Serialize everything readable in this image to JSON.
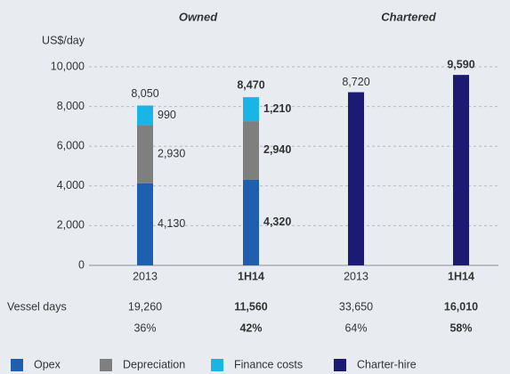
{
  "chart_data": {
    "type": "stacked_bar",
    "unit_label": "US$/day",
    "groups": [
      "Owned",
      "Chartered"
    ],
    "categories": [
      "2013",
      "1H14",
      "2013",
      "1H14"
    ],
    "series": [
      {
        "name": "Opex",
        "color": "#1f5fb0",
        "values": [
          4130,
          4320,
          null,
          null
        ],
        "value_labels": [
          "4,130",
          "4,320",
          null,
          null
        ]
      },
      {
        "name": "Depreciation",
        "color": "#7f7f7f",
        "values": [
          2930,
          2940,
          null,
          null
        ],
        "value_labels": [
          "2,930",
          "2,940",
          null,
          null
        ]
      },
      {
        "name": "Finance costs",
        "color": "#19b5e6",
        "values": [
          990,
          1210,
          null,
          null
        ],
        "value_labels": [
          "990",
          "1,210",
          null,
          null
        ]
      },
      {
        "name": "Charter-hire",
        "color": "#1c1a72",
        "values": [
          null,
          null,
          8720,
          9590
        ],
        "value_labels": [
          null,
          null,
          "8,720",
          "9,590"
        ]
      }
    ],
    "totals": {
      "values": [
        8050,
        8470,
        null,
        null
      ],
      "value_labels": [
        "8,050",
        "8,470",
        null,
        null
      ]
    },
    "ylim": [
      0,
      10000
    ],
    "yticks": [
      0,
      {
        "value": 2000,
        "label": "2,000"
      },
      {
        "value": 4000,
        "label": "4,000"
      },
      {
        "value": 6000,
        "label": "6,000"
      },
      {
        "value": 8000,
        "label": "8,000"
      },
      {
        "value": 10000,
        "label": "10,000"
      }
    ],
    "grid": true,
    "vessel_days": {
      "label": "Vessel days",
      "values": [
        19260,
        11560,
        33650,
        16010
      ],
      "value_labels": [
        "19,260",
        "11,560",
        "33,650",
        "16,010"
      ]
    },
    "shares": {
      "values": [
        36,
        42,
        64,
        58
      ],
      "value_labels": [
        "36%",
        "42%",
        "64%",
        "58%"
      ]
    }
  }
}
